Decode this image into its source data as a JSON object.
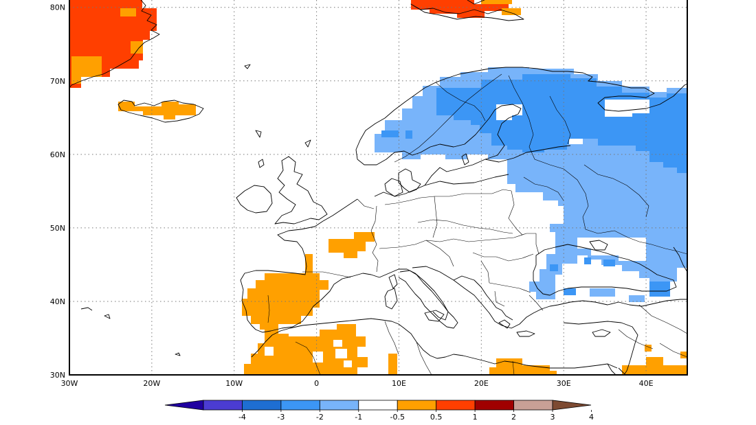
{
  "map": {
    "lon_range": [
      -30,
      45
    ],
    "lat_range": [
      30,
      81
    ],
    "lat_labels": [
      {
        "lat": 80,
        "text": "80N"
      },
      {
        "lat": 70,
        "text": "70N"
      },
      {
        "lat": 60,
        "text": "60N"
      },
      {
        "lat": 50,
        "text": "50N"
      },
      {
        "lat": 40,
        "text": "40N"
      },
      {
        "lat": 30,
        "text": "30N"
      }
    ],
    "lon_labels": [
      {
        "lon": -30,
        "text": "30W"
      },
      {
        "lon": -20,
        "text": "20W"
      },
      {
        "lon": -10,
        "text": "10W"
      },
      {
        "lon": 0,
        "text": "0"
      },
      {
        "lon": 10,
        "text": "10E"
      },
      {
        "lon": 20,
        "text": "20E"
      },
      {
        "lon": 30,
        "text": "30E"
      },
      {
        "lon": 40,
        "text": "40E"
      }
    ],
    "gridlines": "dotted",
    "anomaly_regions": [
      {
        "name": "Greenland SE",
        "class": "1 to 2",
        "color": "#ff3f00"
      },
      {
        "name": "Greenland S tip",
        "class": "0.5 to 1",
        "color": "#ffa000"
      },
      {
        "name": "Svalbard",
        "class": "1 to 2",
        "color": "#ff3f00"
      },
      {
        "name": "Iceland",
        "class": "0.5 to 1",
        "color": "#ffa000"
      },
      {
        "name": "Scandinavia",
        "class": "-1 to -0.5",
        "color": "#78b4fa"
      },
      {
        "name": "Russia NW",
        "class": "-2 to -1",
        "color": "#3c96f5"
      },
      {
        "name": "Eastern Europe / Black Sea",
        "class": "-1 to -0.5",
        "color": "#78b4fa"
      },
      {
        "name": "Iberia",
        "class": "0.5 to 1",
        "color": "#ffa000"
      },
      {
        "name": "France",
        "class": "0.5 to 1",
        "color": "#ffa000"
      },
      {
        "name": "North Africa",
        "class": "0.5 to 1",
        "color": "#ffa000"
      },
      {
        "name": "Libya / Egypt",
        "class": "0.5 to 1",
        "color": "#ffa000"
      }
    ]
  },
  "legend": {
    "bins": [
      {
        "color": "#2000a0"
      },
      {
        "color": "#4b3cd2"
      },
      {
        "color": "#1e6ed2"
      },
      {
        "color": "#3c96f5"
      },
      {
        "color": "#78b4fa"
      },
      {
        "color": "#ffffff"
      },
      {
        "color": "#ffa000"
      },
      {
        "color": "#ff3f00"
      },
      {
        "color": "#a00000"
      },
      {
        "color": "#c8a096"
      },
      {
        "color": "#7d4a32"
      }
    ],
    "labels": [
      "-4",
      "-3",
      "-2",
      "-1",
      "-0.5",
      "0.5",
      "1",
      "2",
      "3",
      "4"
    ]
  }
}
